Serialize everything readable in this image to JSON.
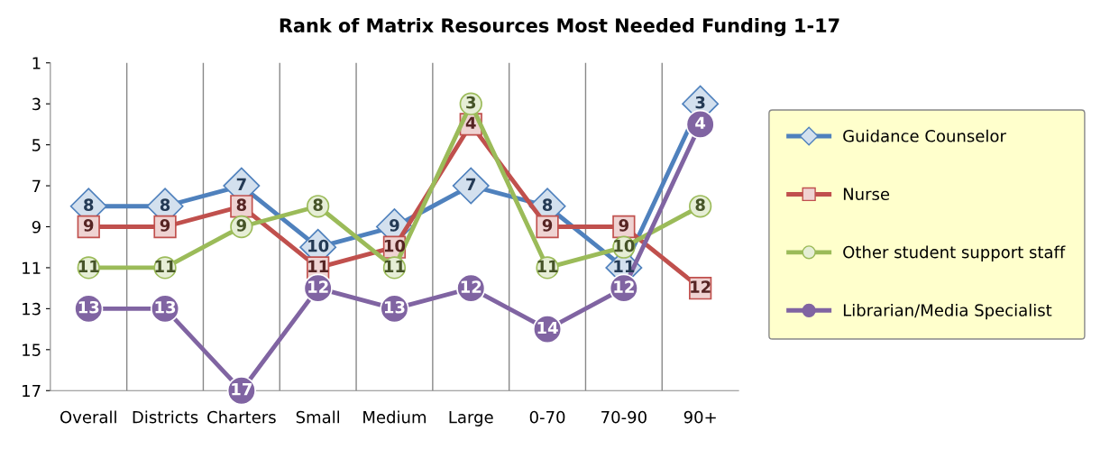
{
  "chart_data": {
    "type": "line",
    "title": "Rank of Matrix Resources Most Needed Funding 1-17",
    "categories": [
      "Overall",
      "Districts",
      "Charters",
      "Small",
      "Medium",
      "Large",
      "0-70",
      "70-90",
      "90+"
    ],
    "series": [
      {
        "name": "Guidance Counselor",
        "color": "#4f81bd",
        "marker": "diamond",
        "values": [
          8,
          8,
          7,
          10,
          9,
          7,
          8,
          11,
          3
        ]
      },
      {
        "name": "Nurse",
        "color": "#c0504d",
        "marker": "square",
        "values": [
          9,
          9,
          8,
          11,
          10,
          4,
          9,
          9,
          12
        ]
      },
      {
        "name": "Other student support staff",
        "color": "#9bbb59",
        "marker": "circle",
        "values": [
          11,
          11,
          9,
          8,
          11,
          3,
          11,
          10,
          8
        ]
      },
      {
        "name": "Librarian/Media Specialist",
        "color": "#8064a2",
        "marker": "circle",
        "values": [
          13,
          13,
          17,
          12,
          13,
          12,
          14,
          12,
          4
        ]
      }
    ],
    "ylim": [
      17,
      1
    ],
    "yticks": [
      1,
      3,
      5,
      7,
      9,
      11,
      13,
      15,
      17
    ],
    "grid": "x",
    "legend": "right",
    "data_labels": true,
    "line_style": "solid"
  }
}
